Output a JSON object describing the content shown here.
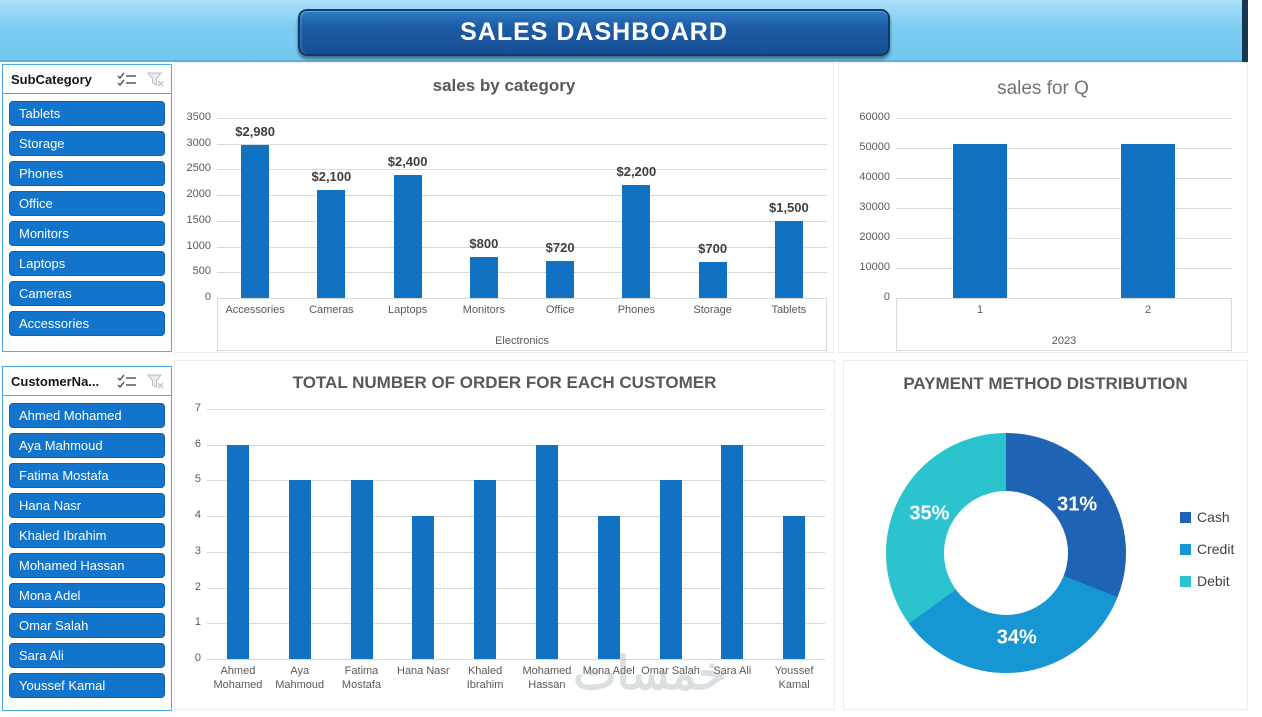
{
  "banner": {
    "title": "SALES DASHBOARD"
  },
  "slicers": [
    {
      "title": "SubCategory",
      "items": [
        "Tablets",
        "Storage",
        "Phones",
        "Office",
        "Monitors",
        "Laptops",
        "Cameras",
        "Accessories"
      ]
    },
    {
      "title": "CustomerNa...",
      "items": [
        "Ahmed Mohamed",
        "Aya Mahmoud",
        "Fatima Mostafa",
        "Hana Nasr",
        "Khaled Ibrahim",
        "Mohamed Hassan",
        "Mona Adel",
        "Omar Salah",
        "Sara Ali",
        "Youssef Kamal"
      ]
    }
  ],
  "chart_data": [
    {
      "type": "bar",
      "title": "sales by category",
      "categories": [
        "Accessories",
        "Cameras",
        "Laptops",
        "Monitors",
        "Office",
        "Phones",
        "Storage",
        "Tablets"
      ],
      "values": [
        2980,
        2100,
        2400,
        800,
        720,
        2200,
        700,
        1500
      ],
      "value_labels": [
        "$2,980",
        "$2,100",
        "$2,400",
        "$800",
        "$720",
        "$2,200",
        "$700",
        "$1,500"
      ],
      "group_label": "Electronics",
      "xlabel": "Electronics",
      "ylabel": "",
      "ylim": [
        0,
        3500
      ],
      "ytick_step": 500,
      "grid": true,
      "legend_position": "none",
      "bar_color": "#1272C2"
    },
    {
      "type": "bar",
      "title": "sales for Q",
      "categories": [
        "1",
        "2"
      ],
      "values": [
        51500,
        51500
      ],
      "value_labels": null,
      "group_label": "2023",
      "xlabel": "2023",
      "ylabel": "",
      "ylim": [
        0,
        60000
      ],
      "ytick_step": 10000,
      "grid": true,
      "legend_position": "none",
      "bar_color": "#1272C2"
    },
    {
      "type": "bar",
      "title": "TOTAL NUMBER OF ORDER FOR EACH CUSTOMER",
      "categories": [
        "Ahmed Mohamed",
        "Aya Mahmoud",
        "Fatima Mostafa",
        "Hana Nasr",
        "Khaled Ibrahim",
        "Mohamed Hassan",
        "Mona Adel",
        "Omar Salah",
        "Sara Ali",
        "Youssef Kamal"
      ],
      "values": [
        6,
        5,
        5,
        4,
        5,
        6,
        4,
        5,
        6,
        4
      ],
      "value_labels": null,
      "group_label": null,
      "xlabel": "",
      "ylabel": "",
      "ylim": [
        0,
        7
      ],
      "ytick_step": 1,
      "grid": true,
      "legend_position": "none",
      "bar_color": "#1272C2"
    },
    {
      "type": "donut",
      "title": "PAYMENT METHOD DISTRIBUTION",
      "slices": [
        {
          "name": "Cash",
          "pct": 31,
          "color": "#1F63B5"
        },
        {
          "name": "Credit",
          "pct": 34,
          "color": "#1697D4"
        },
        {
          "name": "Debit",
          "pct": 35,
          "color": "#2BC4CE"
        }
      ],
      "labels": [
        "31%",
        "34%",
        "35%"
      ],
      "legend_position": "right"
    }
  ],
  "icons": {
    "multiselect": "multi-select-icon",
    "clear_filter": "clear-filter-icon"
  },
  "watermark": "خمسات",
  "colors": {
    "bar": "#1272C2",
    "band": "#7CCDF2",
    "banner_fill": "#1D5CA6",
    "slicer_item": "#1374CC",
    "slicer_border": "#4AACE4",
    "title_text": "#595959",
    "gridline": "#D9D9D9",
    "cash": "#1F63B5",
    "credit": "#1697D4",
    "debit": "#2BC4CE"
  }
}
